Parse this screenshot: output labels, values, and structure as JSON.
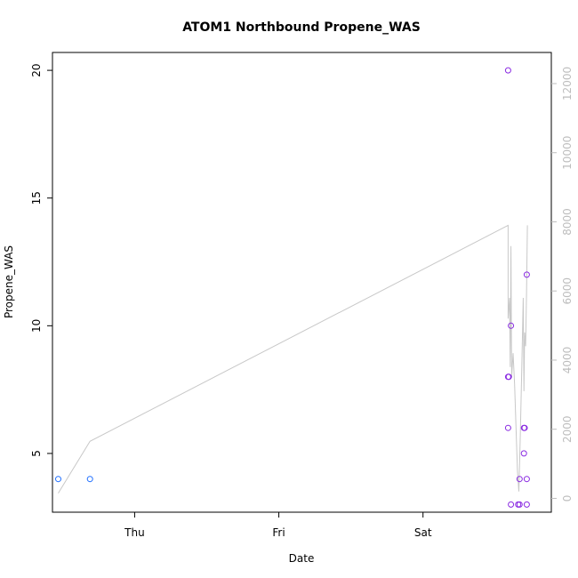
{
  "chart_data": {
    "type": "scatter",
    "title": "ATOM1 Northbound Propene_WAS",
    "xlabel": "Date",
    "ylabel": "Propene_WAS",
    "x_ticks": [
      "Thu",
      "Fri",
      "Sat"
    ],
    "x_range_days": [
      -0.57,
      2.89
    ],
    "y_left": {
      "lim": [
        2.7,
        20.7
      ],
      "ticks": [
        5,
        10,
        15,
        20
      ]
    },
    "y_right": {
      "lim": [
        -400,
        12900
      ],
      "ticks": [
        0,
        2000,
        4000,
        6000,
        8000,
        10000,
        12000
      ]
    },
    "points": [
      {
        "x": -0.53,
        "y": 4,
        "color": "#1f6fff"
      },
      {
        "x": -0.31,
        "y": 4,
        "color": "#1f6fff"
      },
      {
        "x": 2.59,
        "y": 20,
        "color": "#8a2be2"
      },
      {
        "x": 2.59,
        "y": 8,
        "color": "#8a2be2"
      },
      {
        "x": 2.595,
        "y": 8,
        "color": "#8a2be2"
      },
      {
        "x": 2.59,
        "y": 6,
        "color": "#8a2be2"
      },
      {
        "x": 2.61,
        "y": 10,
        "color": "#8a2be2"
      },
      {
        "x": 2.61,
        "y": 3,
        "color": "#8a2be2"
      },
      {
        "x": 2.66,
        "y": 3,
        "color": "#8a2be2"
      },
      {
        "x": 2.67,
        "y": 3,
        "color": "#8a2be2"
      },
      {
        "x": 2.67,
        "y": 4,
        "color": "#8a2be2"
      },
      {
        "x": 2.7,
        "y": 6,
        "color": "#8a2be2"
      },
      {
        "x": 2.705,
        "y": 6,
        "color": "#8a2be2"
      },
      {
        "x": 2.7,
        "y": 5,
        "color": "#8a2be2"
      },
      {
        "x": 2.72,
        "y": 12,
        "color": "#8a2be2"
      },
      {
        "x": 2.72,
        "y": 4,
        "color": "#8a2be2"
      },
      {
        "x": 2.72,
        "y": 3,
        "color": "#8a2be2"
      }
    ],
    "line": {
      "color": "#c8c8c8",
      "axis": "right",
      "x": [
        -0.53,
        -0.31,
        2.59,
        2.59,
        2.6,
        2.605,
        2.61,
        2.615,
        2.625,
        2.635,
        2.655,
        2.665,
        2.675,
        2.685,
        2.695,
        2.7,
        2.705,
        2.712,
        2.718,
        2.724
      ],
      "y": [
        150,
        1650,
        7900,
        5200,
        5800,
        3800,
        7300,
        3500,
        4200,
        3300,
        800,
        200,
        1800,
        3800,
        5800,
        3100,
        4800,
        4400,
        5900,
        7900
      ]
    }
  }
}
